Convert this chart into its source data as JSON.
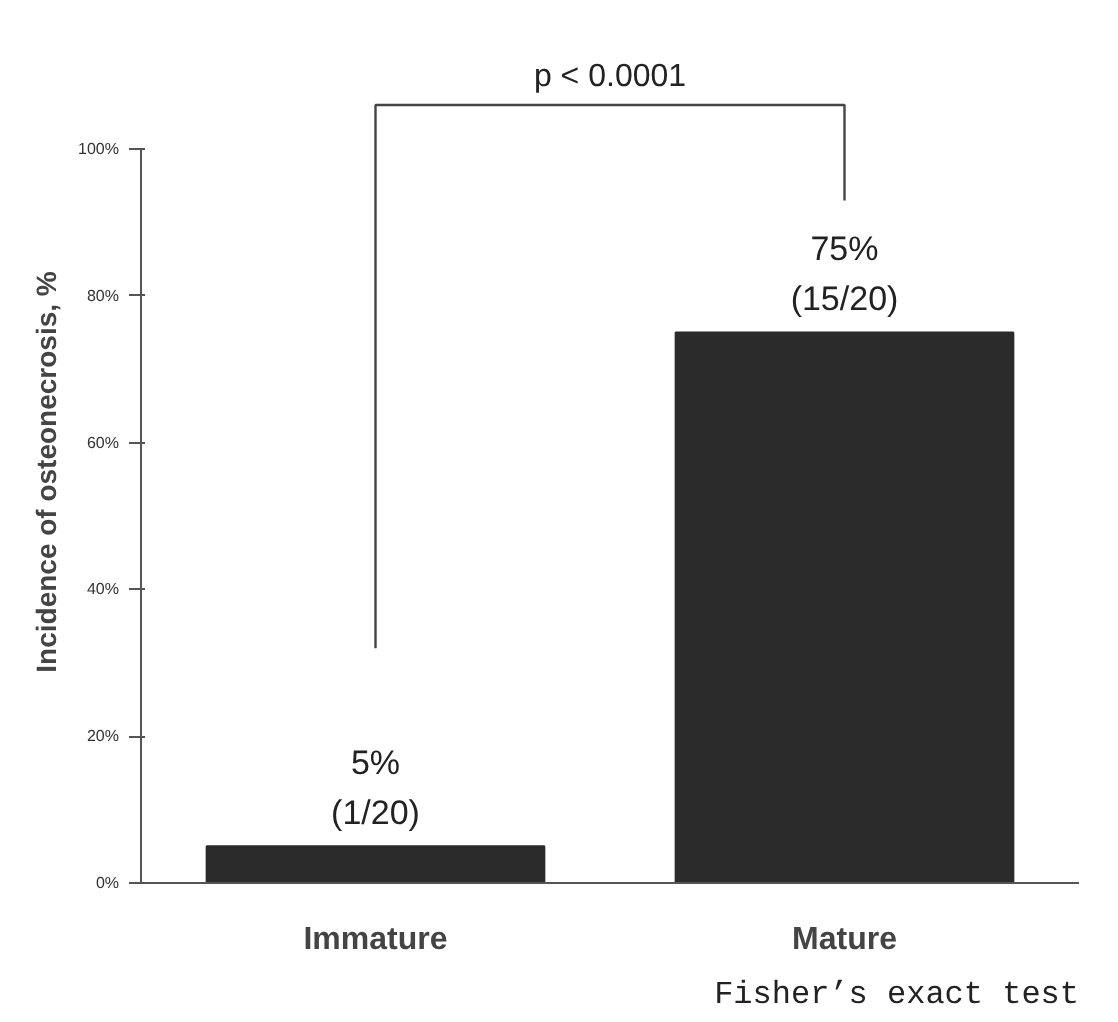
{
  "chart_data": {
    "type": "bar",
    "ylabel": "Incidence of osteonecrosis, %",
    "categories": [
      "Immature",
      "Mature"
    ],
    "values": [
      5,
      75
    ],
    "value_labels": [
      "5%\n(1/20)",
      "75%\n(15/20)"
    ],
    "color": "#2b2b2b",
    "ylim": [
      0,
      100
    ],
    "yticks": [
      {
        "value": 0,
        "label": "0%"
      },
      {
        "value": 20,
        "label": "20%"
      },
      {
        "value": 40,
        "label": "40%"
      },
      {
        "value": 60,
        "label": "60%"
      },
      {
        "value": 80,
        "label": "80%"
      },
      {
        "value": 100,
        "label": "100%"
      }
    ],
    "grid": false,
    "annotations": [
      "p < 0.0001",
      "Fisher’s exact test"
    ]
  }
}
